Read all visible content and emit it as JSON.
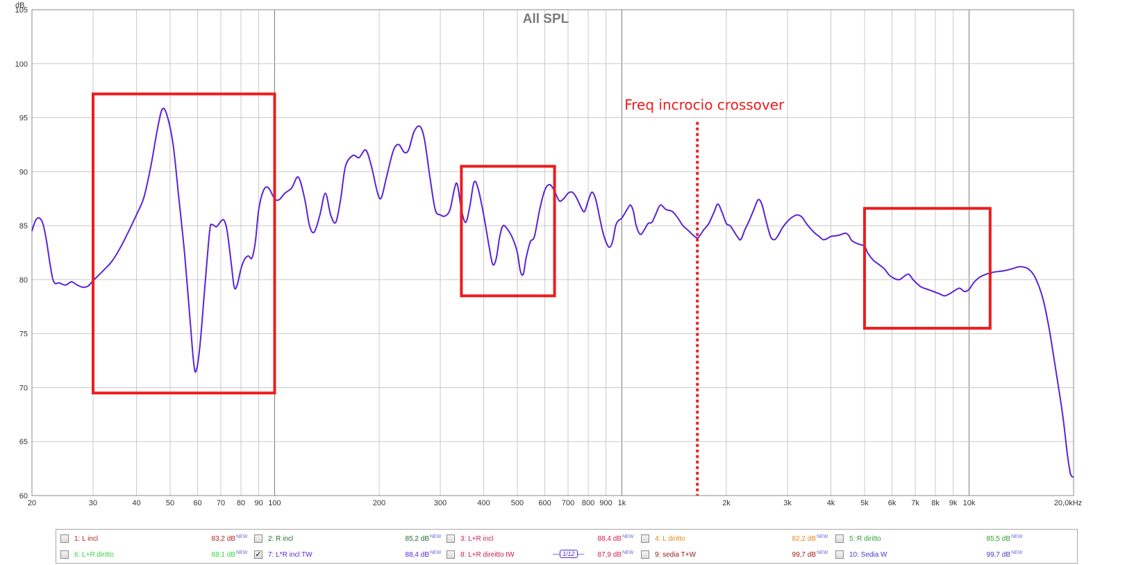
{
  "chart_data": {
    "type": "line",
    "title": "All SPL",
    "ylabel": "dB",
    "xlabel": "",
    "x_scale": "log",
    "xlim": [
      20,
      20000
    ],
    "ylim": [
      60,
      105
    ],
    "yticks": [
      60,
      65,
      70,
      75,
      80,
      85,
      90,
      95,
      100,
      105
    ],
    "xticks": [
      {
        "v": 20,
        "label": "20"
      },
      {
        "v": 30,
        "label": "30"
      },
      {
        "v": 40,
        "label": "40"
      },
      {
        "v": 50,
        "label": "50"
      },
      {
        "v": 60,
        "label": "60"
      },
      {
        "v": 70,
        "label": "70"
      },
      {
        "v": 80,
        "label": "80"
      },
      {
        "v": 90,
        "label": "90"
      },
      {
        "v": 100,
        "label": "100"
      },
      {
        "v": 200,
        "label": "200"
      },
      {
        "v": 300,
        "label": "300"
      },
      {
        "v": 400,
        "label": "400"
      },
      {
        "v": 500,
        "label": "500"
      },
      {
        "v": 600,
        "label": "600"
      },
      {
        "v": 700,
        "label": "700"
      },
      {
        "v": 800,
        "label": "800"
      },
      {
        "v": 900,
        "label": "900"
      },
      {
        "v": 1000,
        "label": "1k"
      },
      {
        "v": 2000,
        "label": "2k"
      },
      {
        "v": 3000,
        "label": "3k"
      },
      {
        "v": 4000,
        "label": "4k"
      },
      {
        "v": 5000,
        "label": "5k"
      },
      {
        "v": 6000,
        "label": "6k"
      },
      {
        "v": 7000,
        "label": "7k"
      },
      {
        "v": 8000,
        "label": "8k"
      },
      {
        "v": 9000,
        "label": "9k"
      },
      {
        "v": 10000,
        "label": "10k"
      },
      {
        "v": 20000,
        "label": "20,0kHz"
      }
    ],
    "grid": true,
    "series": [
      {
        "name": "7: L*R incl TW",
        "color": "#5a22d6",
        "points": [
          [
            20,
            84.5
          ],
          [
            20.5,
            85.5
          ],
          [
            21,
            85.7
          ],
          [
            21.5,
            85.2
          ],
          [
            22,
            83.7
          ],
          [
            23,
            80
          ],
          [
            24,
            79.7
          ],
          [
            25,
            79.5
          ],
          [
            26,
            79.8
          ],
          [
            27,
            79.5
          ],
          [
            28,
            79.3
          ],
          [
            29,
            79.4
          ],
          [
            30,
            79.9
          ],
          [
            32,
            80.8
          ],
          [
            34,
            81.7
          ],
          [
            36,
            83
          ],
          [
            38,
            84.5
          ],
          [
            40,
            86
          ],
          [
            42,
            87.6
          ],
          [
            44,
            90.5
          ],
          [
            46,
            94
          ],
          [
            47.5,
            95.8
          ],
          [
            49,
            95.2
          ],
          [
            51,
            92.5
          ],
          [
            53,
            87.5
          ],
          [
            55,
            82.5
          ],
          [
            57,
            76.5
          ],
          [
            58.5,
            72.2
          ],
          [
            59.5,
            71.6
          ],
          [
            61,
            74
          ],
          [
            63,
            79.5
          ],
          [
            65,
            84.5
          ],
          [
            66,
            85.1
          ],
          [
            68,
            84.9
          ],
          [
            70,
            85.4
          ],
          [
            71.5,
            85.5
          ],
          [
            73,
            84.5
          ],
          [
            75,
            81.5
          ],
          [
            76.5,
            79.3
          ],
          [
            78,
            79.5
          ],
          [
            80,
            81
          ],
          [
            82,
            81.9
          ],
          [
            84,
            82.2
          ],
          [
            86,
            82
          ],
          [
            88,
            83.5
          ],
          [
            90,
            86.5
          ],
          [
            93,
            88.3
          ],
          [
            96,
            88.5
          ],
          [
            100,
            87.5
          ],
          [
            103,
            87.4
          ],
          [
            107,
            88
          ],
          [
            112,
            88.5
          ],
          [
            117,
            89.5
          ],
          [
            122,
            87.5
          ],
          [
            126,
            85
          ],
          [
            130,
            84.4
          ],
          [
            135,
            86
          ],
          [
            140,
            88
          ],
          [
            145,
            86
          ],
          [
            150,
            85.3
          ],
          [
            155,
            87.5
          ],
          [
            160,
            90.5
          ],
          [
            168,
            91.5
          ],
          [
            175,
            91.3
          ],
          [
            183,
            92
          ],
          [
            190,
            90.5
          ],
          [
            198,
            88
          ],
          [
            203,
            87.6
          ],
          [
            210,
            89.5
          ],
          [
            220,
            92
          ],
          [
            228,
            92.5
          ],
          [
            236,
            91.8
          ],
          [
            243,
            92
          ],
          [
            252,
            93.7
          ],
          [
            262,
            94.2
          ],
          [
            270,
            93
          ],
          [
            280,
            89.5
          ],
          [
            290,
            86.5
          ],
          [
            300,
            86
          ],
          [
            310,
            85.9
          ],
          [
            320,
            86.5
          ],
          [
            330,
            88.5
          ],
          [
            336,
            88.8
          ],
          [
            345,
            86.5
          ],
          [
            355,
            85.3
          ],
          [
            365,
            86.8
          ],
          [
            375,
            89
          ],
          [
            385,
            88.5
          ],
          [
            400,
            86
          ],
          [
            415,
            83
          ],
          [
            425,
            81.4
          ],
          [
            435,
            82
          ],
          [
            445,
            84
          ],
          [
            455,
            85
          ],
          [
            470,
            84.6
          ],
          [
            485,
            83.8
          ],
          [
            500,
            82.5
          ],
          [
            510,
            80.8
          ],
          [
            520,
            80.5
          ],
          [
            530,
            82
          ],
          [
            545,
            83.5
          ],
          [
            560,
            84
          ],
          [
            580,
            86.5
          ],
          [
            600,
            88.3
          ],
          [
            620,
            88.8
          ],
          [
            640,
            88.2
          ],
          [
            660,
            87.3
          ],
          [
            680,
            87.5
          ],
          [
            700,
            88
          ],
          [
            720,
            88.1
          ],
          [
            740,
            87.6
          ],
          [
            760,
            86.8
          ],
          [
            780,
            86.3
          ],
          [
            800,
            87.3
          ],
          [
            820,
            88.1
          ],
          [
            840,
            87.5
          ],
          [
            860,
            86
          ],
          [
            880,
            84.5
          ],
          [
            900,
            83.5
          ],
          [
            920,
            83
          ],
          [
            940,
            83.5
          ],
          [
            960,
            85
          ],
          [
            980,
            85.5
          ],
          [
            1000,
            85.7
          ],
          [
            1040,
            86.6
          ],
          [
            1060,
            86.9
          ],
          [
            1080,
            86.3
          ],
          [
            1100,
            85
          ],
          [
            1130,
            84.2
          ],
          [
            1160,
            84.6
          ],
          [
            1190,
            85.2
          ],
          [
            1220,
            85.3
          ],
          [
            1250,
            86
          ],
          [
            1290,
            86.9
          ],
          [
            1340,
            86.5
          ],
          [
            1400,
            86.3
          ],
          [
            1450,
            85.7
          ],
          [
            1500,
            85
          ],
          [
            1560,
            84.5
          ],
          [
            1620,
            84
          ],
          [
            1660,
            83.9
          ],
          [
            1720,
            84.6
          ],
          [
            1780,
            85.2
          ],
          [
            1840,
            86.2
          ],
          [
            1890,
            87
          ],
          [
            1940,
            86.3
          ],
          [
            2000,
            85.2
          ],
          [
            2050,
            85
          ],
          [
            2100,
            84.5
          ],
          [
            2150,
            84
          ],
          [
            2200,
            83.7
          ],
          [
            2260,
            84.6
          ],
          [
            2330,
            85.5
          ],
          [
            2400,
            86.5
          ],
          [
            2470,
            87.4
          ],
          [
            2530,
            87
          ],
          [
            2600,
            85.5
          ],
          [
            2680,
            84
          ],
          [
            2750,
            83.7
          ],
          [
            2820,
            84.1
          ],
          [
            2900,
            84.8
          ],
          [
            3000,
            85.4
          ],
          [
            3100,
            85.8
          ],
          [
            3200,
            86
          ],
          [
            3300,
            85.8
          ],
          [
            3400,
            85.2
          ],
          [
            3500,
            84.7
          ],
          [
            3600,
            84.3
          ],
          [
            3700,
            84
          ],
          [
            3800,
            83.7
          ],
          [
            3900,
            83.8
          ],
          [
            4000,
            84
          ],
          [
            4200,
            84.1
          ],
          [
            4400,
            84.3
          ],
          [
            4500,
            84.1
          ],
          [
            4600,
            83.6
          ],
          [
            4800,
            83.3
          ],
          [
            5000,
            83.1
          ],
          [
            5100,
            82.5
          ],
          [
            5300,
            81.8
          ],
          [
            5500,
            81.4
          ],
          [
            5700,
            81
          ],
          [
            5900,
            80.4
          ],
          [
            6100,
            80.1
          ],
          [
            6300,
            80
          ],
          [
            6500,
            80.3
          ],
          [
            6700,
            80.5
          ],
          [
            6900,
            80
          ],
          [
            7100,
            79.6
          ],
          [
            7300,
            79.3
          ],
          [
            7600,
            79.1
          ],
          [
            7900,
            78.9
          ],
          [
            8200,
            78.7
          ],
          [
            8500,
            78.5
          ],
          [
            8800,
            78.7
          ],
          [
            9100,
            79
          ],
          [
            9400,
            79.2
          ],
          [
            9700,
            78.9
          ],
          [
            10000,
            79.1
          ],
          [
            10300,
            79.7
          ],
          [
            10700,
            80.2
          ],
          [
            11200,
            80.5
          ],
          [
            11800,
            80.7
          ],
          [
            12500,
            80.8
          ],
          [
            13300,
            81
          ],
          [
            14000,
            81.2
          ],
          [
            14800,
            81
          ],
          [
            15500,
            80.2
          ],
          [
            16300,
            78.3
          ],
          [
            17000,
            75.5
          ],
          [
            17800,
            71.5
          ],
          [
            18600,
            67.5
          ],
          [
            19200,
            63.8
          ],
          [
            19600,
            62
          ],
          [
            20000,
            61.7
          ]
        ]
      }
    ],
    "annotations": [
      {
        "text": "Freq incrocio crossover",
        "at_x": 1650
      }
    ],
    "highlight_boxes": [
      {
        "x_range": [
          30,
          100
        ],
        "y_range": [
          69.5,
          97.2
        ]
      },
      {
        "x_range": [
          345,
          640
        ],
        "y_range": [
          78.5,
          90.5
        ]
      },
      {
        "x_range": [
          5000,
          11500
        ],
        "y_range": [
          75.5,
          86.6
        ]
      }
    ],
    "crossover_line": {
      "x": 1650,
      "y_range": [
        60,
        94.6
      ],
      "color": "#ee1c1c"
    }
  },
  "legend": {
    "items": [
      {
        "label": "1: L incl",
        "value": "83,2 dB",
        "badge": "NEW",
        "color": "#b01e1e",
        "checked": false
      },
      {
        "label": "2: R incl",
        "value": "85,2 dB",
        "badge": "NEW",
        "color": "#1f6b2e",
        "checked": false
      },
      {
        "label": "3: L+R incl",
        "value": "88,4 dB",
        "badge": "NEW",
        "color": "#cf1b4d",
        "checked": false
      },
      {
        "label": "4: L diritto",
        "value": "82,2 dB",
        "badge": "NEW",
        "color": "#e38a1b",
        "checked": false
      },
      {
        "label": "5: R diritto",
        "value": "85,5 dB",
        "badge": "NEW",
        "color": "#2a9d2a",
        "checked": false
      },
      {
        "label": "6: L+R diritto",
        "value": "88,1 dB",
        "badge": "NEW",
        "color": "#39d339",
        "checked": false
      },
      {
        "label": "7: L*R incl TW",
        "value": "88,4 dB",
        "badge": "NEW",
        "color": "#5a22d6",
        "checked": true,
        "smoothing": "1/12"
      },
      {
        "label": "8: L+R direitto tW",
        "value": "87,9 dB",
        "badge": "NEW",
        "color": "#cc1a4a",
        "checked": false
      },
      {
        "label": "9: sedia T+W",
        "value": "99,7 dB",
        "badge": "NEW",
        "color": "#a01818",
        "checked": false
      },
      {
        "label": "10: Sedia W",
        "value": "99,7 dB",
        "badge": "NEW",
        "color": "#3a3acc",
        "checked": false
      }
    ]
  }
}
